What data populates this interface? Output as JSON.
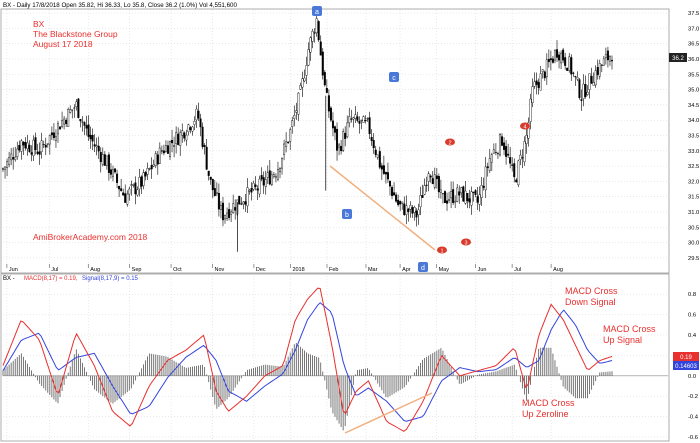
{
  "header": {
    "price_line": "BX - Daily 17/8/2018 Open 35.82, Hi 36.33, Lo 35.8, Close 36.2 (1.0%) Vol 4,551,600",
    "macd_prefix": "BX - ",
    "macd_label": "MACD(8,17) = 0.19,",
    "signal_label": "Signal(8,17,9) = 0.15"
  },
  "title": {
    "ticker": "BX",
    "company": "The Blackstone Group",
    "date": "August 17 2018"
  },
  "watermark": "AmiBrokerAcademy.com  2018",
  "price_labels": {
    "last": "36.2"
  },
  "macd_labels": {
    "macd_value": "0.19",
    "signal_value": "0.14603"
  },
  "wave_labels": {
    "upper": [
      "a",
      "b",
      "c",
      "d"
    ],
    "lower": [
      "1",
      "2",
      "3",
      "4"
    ]
  },
  "annotations": {
    "cross_down_line1": "MACD Cross",
    "cross_down_line2": "Down Signal",
    "cross_up_line1": "MACD Cross",
    "cross_up_line2": "Up Signal",
    "zeroline_line1": "MACD Cross",
    "zeroline_line2": "Up Zeroline"
  },
  "colors": {
    "up": "#000000",
    "title_red": "#e8302e",
    "macd": "#e8302e",
    "signal": "#3344dd",
    "histogram": "#555555",
    "wave_box": "#4a78d8",
    "wave_dot": "#d83a2c",
    "trendline": "#f0b080",
    "grid": "#c8c8c8"
  },
  "chart_data": [
    {
      "type": "candlestick",
      "title": "BX - Daily",
      "x_ticks": [
        "Jun",
        "Jul",
        "Aug",
        "Sep",
        "Oct",
        "Nov",
        "Dec",
        "2018",
        "Feb",
        "Mar",
        "Apr",
        "May",
        "Jun",
        "Jul",
        "Aug"
      ],
      "ylim": [
        29.3,
        37.6
      ],
      "y_ticks": [
        29.5,
        30.0,
        30.5,
        31.0,
        31.5,
        32.0,
        32.5,
        33.0,
        33.5,
        34.0,
        34.5,
        35.0,
        35.5,
        36.0,
        36.5,
        37.0,
        37.5
      ],
      "close_path": [
        {
          "x": 0,
          "y": 32.4
        },
        {
          "x": 0.03,
          "y": 33.3
        },
        {
          "x": 0.06,
          "y": 33.0
        },
        {
          "x": 0.09,
          "y": 33.8
        },
        {
          "x": 0.12,
          "y": 34.5
        },
        {
          "x": 0.14,
          "y": 33.5
        },
        {
          "x": 0.17,
          "y": 32.6
        },
        {
          "x": 0.2,
          "y": 31.5
        },
        {
          "x": 0.23,
          "y": 32.0
        },
        {
          "x": 0.26,
          "y": 33.0
        },
        {
          "x": 0.29,
          "y": 33.5
        },
        {
          "x": 0.32,
          "y": 34.2
        },
        {
          "x": 0.34,
          "y": 32.0
        },
        {
          "x": 0.36,
          "y": 30.9
        },
        {
          "x": 0.39,
          "y": 31.4
        },
        {
          "x": 0.42,
          "y": 31.8
        },
        {
          "x": 0.45,
          "y": 32.4
        },
        {
          "x": 0.47,
          "y": 33.5
        },
        {
          "x": 0.49,
          "y": 35.0
        },
        {
          "x": 0.5,
          "y": 36.2
        },
        {
          "x": 0.515,
          "y": 37.3
        },
        {
          "x": 0.53,
          "y": 34.8
        },
        {
          "x": 0.55,
          "y": 33.0
        },
        {
          "x": 0.57,
          "y": 34.0
        },
        {
          "x": 0.6,
          "y": 33.8
        },
        {
          "x": 0.62,
          "y": 32.5
        },
        {
          "x": 0.65,
          "y": 31.2
        },
        {
          "x": 0.68,
          "y": 30.9
        },
        {
          "x": 0.7,
          "y": 32.5
        },
        {
          "x": 0.72,
          "y": 31.4
        },
        {
          "x": 0.75,
          "y": 31.6
        },
        {
          "x": 0.78,
          "y": 31.3
        },
        {
          "x": 0.8,
          "y": 32.8
        },
        {
          "x": 0.82,
          "y": 33.4
        },
        {
          "x": 0.84,
          "y": 32.0
        },
        {
          "x": 0.86,
          "y": 33.5
        },
        {
          "x": 0.87,
          "y": 35.0
        },
        {
          "x": 0.89,
          "y": 35.6
        },
        {
          "x": 0.91,
          "y": 36.3
        },
        {
          "x": 0.93,
          "y": 35.8
        },
        {
          "x": 0.95,
          "y": 34.8
        },
        {
          "x": 0.97,
          "y": 35.5
        },
        {
          "x": 1.0,
          "y": 36.2
        }
      ]
    },
    {
      "type": "line",
      "title": "MACD(8,17) / Signal(8,17,9)",
      "ylim": [
        -0.62,
        0.9
      ],
      "y_ticks": [
        0.8,
        0.6,
        0.4,
        0.2,
        0.0,
        -0.2,
        -0.4,
        -0.6
      ],
      "series": [
        {
          "name": "MACD(8,17)",
          "points": [
            {
              "x": 0,
              "y": 0.1
            },
            {
              "x": 0.03,
              "y": 0.55
            },
            {
              "x": 0.06,
              "y": 0.35
            },
            {
              "x": 0.09,
              "y": -0.2
            },
            {
              "x": 0.12,
              "y": 0.42
            },
            {
              "x": 0.15,
              "y": 0.1
            },
            {
              "x": 0.18,
              "y": -0.35
            },
            {
              "x": 0.21,
              "y": -0.5
            },
            {
              "x": 0.24,
              "y": -0.1
            },
            {
              "x": 0.27,
              "y": 0.15
            },
            {
              "x": 0.3,
              "y": 0.25
            },
            {
              "x": 0.33,
              "y": 0.4
            },
            {
              "x": 0.35,
              "y": -0.15
            },
            {
              "x": 0.37,
              "y": -0.35
            },
            {
              "x": 0.4,
              "y": -0.2
            },
            {
              "x": 0.43,
              "y": 0.0
            },
            {
              "x": 0.46,
              "y": 0.1
            },
            {
              "x": 0.48,
              "y": 0.55
            },
            {
              "x": 0.5,
              "y": 0.75
            },
            {
              "x": 0.52,
              "y": 0.88
            },
            {
              "x": 0.54,
              "y": 0.3
            },
            {
              "x": 0.56,
              "y": -0.4
            },
            {
              "x": 0.58,
              "y": -0.15
            },
            {
              "x": 0.6,
              "y": -0.05
            },
            {
              "x": 0.63,
              "y": -0.45
            },
            {
              "x": 0.66,
              "y": -0.55
            },
            {
              "x": 0.69,
              "y": -0.25
            },
            {
              "x": 0.72,
              "y": 0.2
            },
            {
              "x": 0.75,
              "y": 0.0
            },
            {
              "x": 0.78,
              "y": 0.05
            },
            {
              "x": 0.81,
              "y": 0.1
            },
            {
              "x": 0.84,
              "y": 0.28
            },
            {
              "x": 0.86,
              "y": -0.15
            },
            {
              "x": 0.88,
              "y": 0.4
            },
            {
              "x": 0.9,
              "y": 0.7
            },
            {
              "x": 0.92,
              "y": 0.55
            },
            {
              "x": 0.94,
              "y": 0.3
            },
            {
              "x": 0.96,
              "y": 0.05
            },
            {
              "x": 0.98,
              "y": 0.15
            },
            {
              "x": 1.0,
              "y": 0.19
            }
          ]
        },
        {
          "name": "Signal(8,17,9)",
          "points": [
            {
              "x": 0,
              "y": 0.05
            },
            {
              "x": 0.03,
              "y": 0.35
            },
            {
              "x": 0.06,
              "y": 0.42
            },
            {
              "x": 0.09,
              "y": 0.05
            },
            {
              "x": 0.12,
              "y": 0.18
            },
            {
              "x": 0.15,
              "y": 0.22
            },
            {
              "x": 0.18,
              "y": -0.1
            },
            {
              "x": 0.21,
              "y": -0.38
            },
            {
              "x": 0.24,
              "y": -0.3
            },
            {
              "x": 0.27,
              "y": -0.02
            },
            {
              "x": 0.3,
              "y": 0.18
            },
            {
              "x": 0.33,
              "y": 0.3
            },
            {
              "x": 0.35,
              "y": 0.15
            },
            {
              "x": 0.37,
              "y": -0.15
            },
            {
              "x": 0.4,
              "y": -0.25
            },
            {
              "x": 0.43,
              "y": -0.1
            },
            {
              "x": 0.46,
              "y": 0.02
            },
            {
              "x": 0.48,
              "y": 0.25
            },
            {
              "x": 0.5,
              "y": 0.55
            },
            {
              "x": 0.52,
              "y": 0.72
            },
            {
              "x": 0.54,
              "y": 0.62
            },
            {
              "x": 0.56,
              "y": 0.1
            },
            {
              "x": 0.58,
              "y": -0.2
            },
            {
              "x": 0.6,
              "y": -0.12
            },
            {
              "x": 0.63,
              "y": -0.25
            },
            {
              "x": 0.66,
              "y": -0.45
            },
            {
              "x": 0.69,
              "y": -0.4
            },
            {
              "x": 0.72,
              "y": -0.05
            },
            {
              "x": 0.75,
              "y": 0.08
            },
            {
              "x": 0.78,
              "y": 0.04
            },
            {
              "x": 0.81,
              "y": 0.06
            },
            {
              "x": 0.84,
              "y": 0.18
            },
            {
              "x": 0.86,
              "y": 0.08
            },
            {
              "x": 0.88,
              "y": 0.15
            },
            {
              "x": 0.9,
              "y": 0.45
            },
            {
              "x": 0.92,
              "y": 0.65
            },
            {
              "x": 0.94,
              "y": 0.5
            },
            {
              "x": 0.96,
              "y": 0.25
            },
            {
              "x": 0.98,
              "y": 0.12
            },
            {
              "x": 1.0,
              "y": 0.15
            }
          ]
        }
      ]
    }
  ]
}
